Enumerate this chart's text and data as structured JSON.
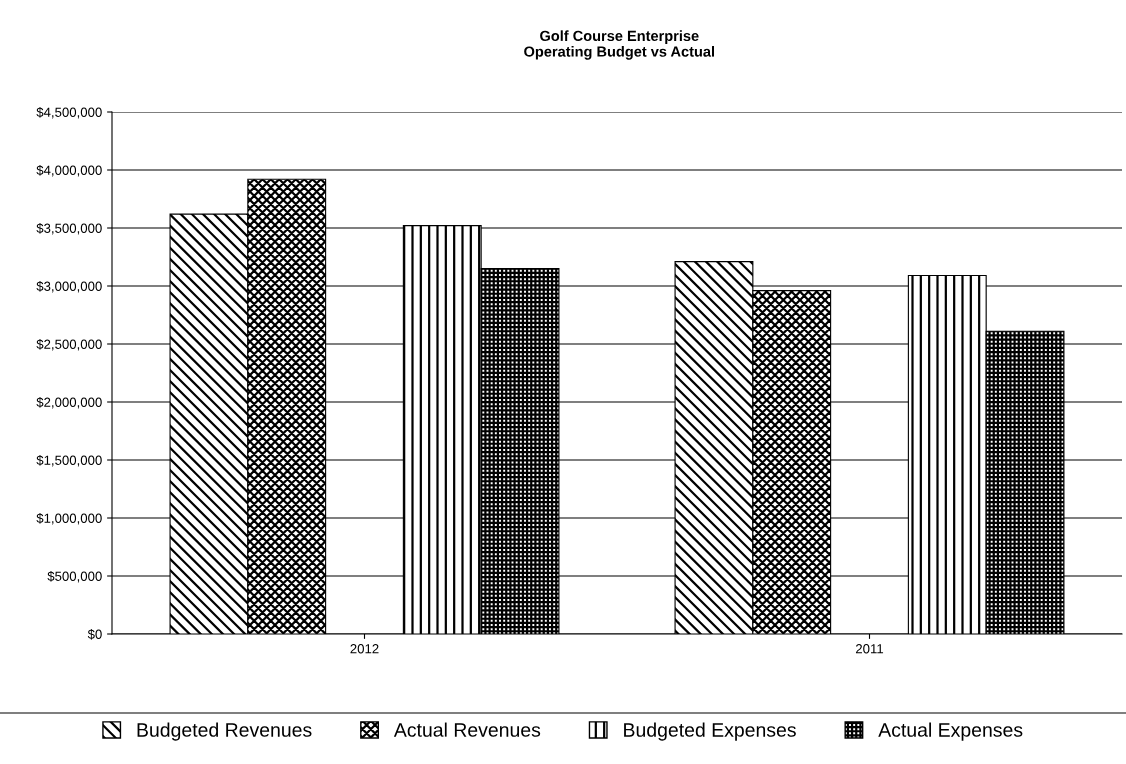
{
  "chart_data": {
    "type": "bar",
    "title": "Golf Course Enterprise\nOperating Budget vs Actual",
    "categories": [
      "2012",
      "2011"
    ],
    "series": [
      {
        "name": "Budgeted Revenues",
        "color": "#000000",
        "values": [
          3620000,
          3210000
        ]
      },
      {
        "name": "Actual Revenues",
        "color": "#000000",
        "values": [
          3920000,
          2960000
        ]
      },
      {
        "name": "Budgeted Expenses",
        "color": "#000000",
        "values": [
          3520000,
          3090000
        ]
      },
      {
        "name": "Actual Expenses",
        "color": "#000000",
        "values": [
          3150000,
          2610000
        ]
      }
    ],
    "ylim": [
      0,
      4500000
    ],
    "yticks": [
      {
        "value": 0,
        "label": "$0"
      },
      {
        "value": 500000,
        "label": "$500,000"
      },
      {
        "value": 1000000,
        "label": "$1,000,000"
      },
      {
        "value": 1500000,
        "label": "$1,500,000"
      },
      {
        "value": 2000000,
        "label": "$2,000,000"
      },
      {
        "value": 2500000,
        "label": "$2,500,000"
      },
      {
        "value": 3000000,
        "label": "$3,000,000"
      },
      {
        "value": 3500000,
        "label": "$3,500,000"
      },
      {
        "value": 4000000,
        "label": "$4,000,000"
      },
      {
        "value": 4500000,
        "label": "$4,500,000"
      }
    ],
    "grid": "y",
    "legend": "bottom"
  }
}
